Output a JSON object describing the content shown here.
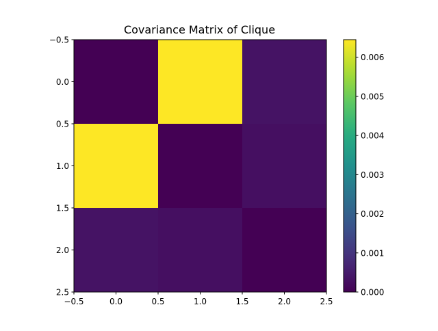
{
  "chart_data": {
    "type": "heatmap",
    "title": "Covariance Matrix of Clique",
    "xlabel": "",
    "ylabel": "",
    "matrix": [
      [
        0.0,
        0.00645,
        0.00033
      ],
      [
        0.00645,
        0.0,
        0.00027
      ],
      [
        0.00033,
        0.00027,
        0.0
      ]
    ],
    "xlim": [
      -0.5,
      2.5
    ],
    "ylim": [
      2.5,
      -0.5
    ],
    "x_ticks": [
      -0.5,
      0.0,
      0.5,
      1.0,
      1.5,
      2.0,
      2.5
    ],
    "x_tick_labels": [
      "−0.5",
      "0.0",
      "0.5",
      "1.0",
      "1.5",
      "2.0",
      "2.5"
    ],
    "y_ticks": [
      -0.5,
      0.0,
      0.5,
      1.0,
      1.5,
      2.0,
      2.5
    ],
    "y_tick_labels": [
      "−0.5",
      "0.0",
      "0.5",
      "1.0",
      "1.5",
      "2.0",
      "2.5"
    ],
    "colorbar": {
      "colormap": "viridis",
      "vmin": 0.0,
      "vmax": 0.00645,
      "ticks": [
        0.0,
        0.001,
        0.002,
        0.003,
        0.004,
        0.005,
        0.006
      ],
      "tick_labels": [
        "0.000",
        "0.001",
        "0.002",
        "0.003",
        "0.004",
        "0.005",
        "0.006"
      ]
    },
    "grid": false
  }
}
